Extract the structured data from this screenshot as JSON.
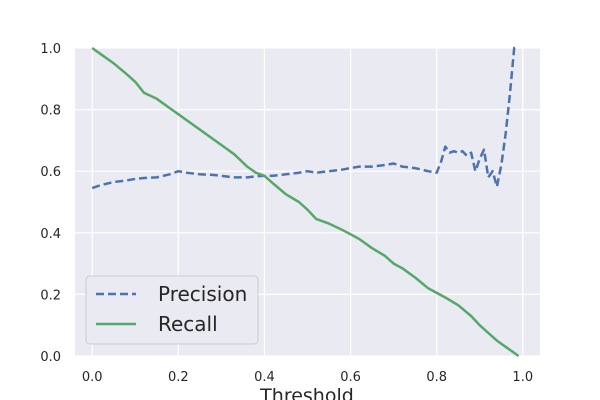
{
  "chart_data": {
    "type": "line",
    "title": "",
    "xlabel": "Threshold",
    "ylabel": "",
    "xlim": [
      -0.04,
      1.04
    ],
    "ylim": [
      0.0,
      1.0
    ],
    "grid": true,
    "legend_position": "lower-left",
    "x_ticks": [
      "0.0",
      "0.2",
      "0.4",
      "0.6",
      "0.8",
      "1.0"
    ],
    "y_ticks": [
      "0.0",
      "0.2",
      "0.4",
      "0.6",
      "0.8",
      "1.0"
    ],
    "colors": {
      "plot_background": "#EAEAF2",
      "grid": "#FFFFFF",
      "precision": "#4C72B0",
      "recall": "#55A868"
    },
    "series": [
      {
        "name": "Precision",
        "style": "dashed",
        "color": "#4C72B0",
        "x": [
          0.0,
          0.02,
          0.05,
          0.08,
          0.1,
          0.12,
          0.15,
          0.18,
          0.2,
          0.22,
          0.25,
          0.28,
          0.3,
          0.33,
          0.36,
          0.38,
          0.4,
          0.42,
          0.45,
          0.48,
          0.5,
          0.52,
          0.55,
          0.58,
          0.6,
          0.62,
          0.65,
          0.68,
          0.7,
          0.72,
          0.75,
          0.78,
          0.8,
          0.81,
          0.82,
          0.83,
          0.84,
          0.85,
          0.86,
          0.87,
          0.88,
          0.89,
          0.9,
          0.91,
          0.92,
          0.93,
          0.94,
          0.95,
          0.96,
          0.97,
          0.98,
          0.99
        ],
        "y": [
          0.545,
          0.555,
          0.565,
          0.57,
          0.575,
          0.578,
          0.58,
          0.59,
          0.6,
          0.595,
          0.59,
          0.588,
          0.585,
          0.58,
          0.58,
          0.583,
          0.585,
          0.585,
          0.59,
          0.595,
          0.6,
          0.595,
          0.6,
          0.605,
          0.61,
          0.615,
          0.615,
          0.62,
          0.625,
          0.615,
          0.61,
          0.6,
          0.595,
          0.63,
          0.68,
          0.66,
          0.665,
          0.66,
          0.665,
          0.65,
          0.66,
          0.6,
          0.64,
          0.67,
          0.58,
          0.6,
          0.55,
          0.62,
          0.72,
          0.85,
          1.0,
          1.0
        ]
      },
      {
        "name": "Recall",
        "style": "solid",
        "color": "#55A868",
        "x": [
          0.0,
          0.02,
          0.05,
          0.08,
          0.1,
          0.12,
          0.15,
          0.18,
          0.2,
          0.22,
          0.25,
          0.28,
          0.3,
          0.33,
          0.36,
          0.38,
          0.4,
          0.42,
          0.45,
          0.48,
          0.5,
          0.52,
          0.55,
          0.58,
          0.6,
          0.62,
          0.65,
          0.68,
          0.7,
          0.72,
          0.75,
          0.78,
          0.8,
          0.82,
          0.85,
          0.88,
          0.9,
          0.92,
          0.94,
          0.96,
          0.98,
          0.99
        ],
        "y": [
          1.0,
          0.98,
          0.95,
          0.915,
          0.89,
          0.855,
          0.835,
          0.805,
          0.785,
          0.765,
          0.735,
          0.705,
          0.685,
          0.655,
          0.615,
          0.595,
          0.585,
          0.56,
          0.525,
          0.5,
          0.475,
          0.445,
          0.43,
          0.41,
          0.395,
          0.38,
          0.35,
          0.325,
          0.3,
          0.285,
          0.255,
          0.22,
          0.205,
          0.19,
          0.165,
          0.13,
          0.1,
          0.075,
          0.05,
          0.03,
          0.01,
          0.0
        ]
      }
    ]
  }
}
